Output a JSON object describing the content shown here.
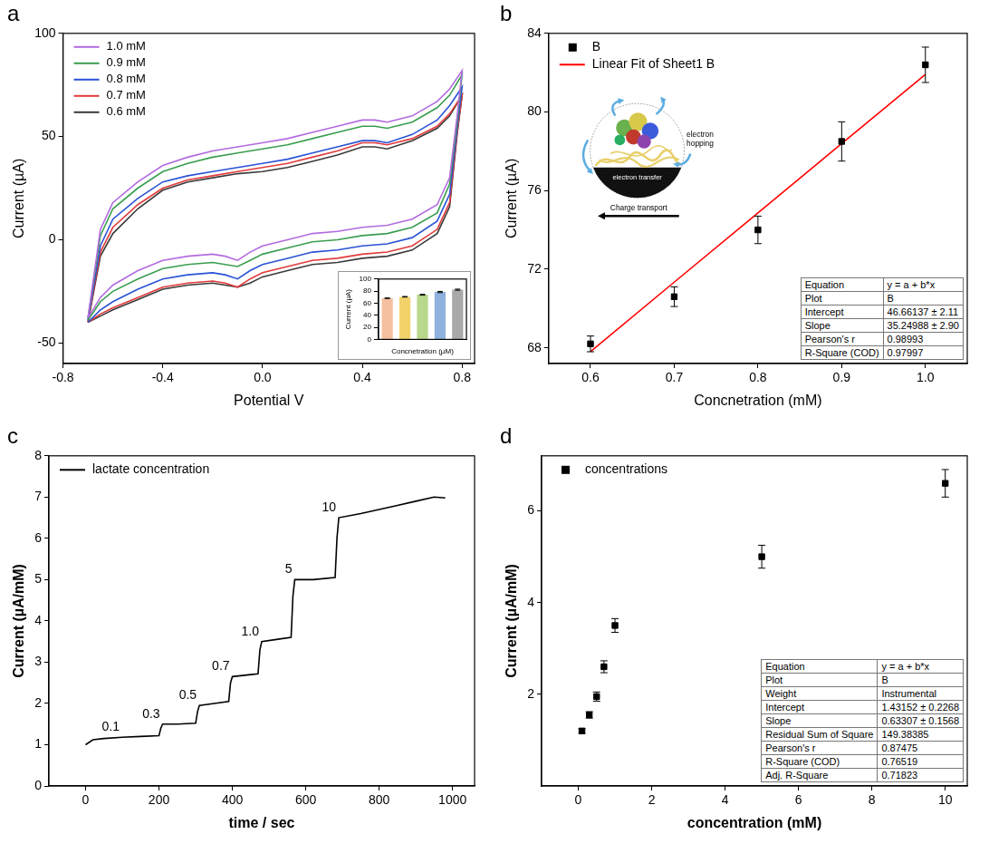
{
  "chart_data": [
    {
      "type": "line",
      "title": "a",
      "x_label": "Potential V",
      "y_label": "Current (µA)",
      "x": [
        -0.7,
        -0.65,
        -0.6,
        -0.5,
        -0.4,
        -0.3,
        -0.2,
        -0.1,
        0,
        0.1,
        0.2,
        0.3,
        0.4,
        0.45,
        0.5,
        0.6,
        0.7,
        0.75,
        0.8,
        0.78,
        0.75,
        0.7,
        0.6,
        0.5,
        0.4,
        0.3,
        0.2,
        0.1,
        0,
        -0.05,
        -0.1,
        -0.15,
        -0.2,
        -0.3,
        -0.4,
        -0.5,
        -0.6,
        -0.65,
        -0.7
      ],
      "series": [
        {
          "name": "1.0 mM",
          "color": "#b26be0",
          "values": [
            -38,
            5,
            18,
            28,
            36,
            40,
            43,
            45,
            47,
            49,
            52,
            55,
            58,
            58,
            57,
            60,
            67,
            73,
            82,
            60,
            30,
            17,
            10,
            7,
            6,
            4,
            3,
            0,
            -3,
            -6,
            -10,
            -8,
            -7,
            -8,
            -10,
            -15,
            -22,
            -28,
            -38
          ]
        },
        {
          "name": "0.9 mM",
          "color": "#3a9e4f",
          "values": [
            -38,
            2,
            15,
            25,
            33,
            37,
            40,
            42,
            44,
            46,
            49,
            52,
            55,
            55,
            54,
            57,
            64,
            70,
            80,
            57,
            27,
            13,
            6,
            3,
            2,
            0,
            -1,
            -4,
            -7,
            -10,
            -13,
            -12,
            -11,
            -12,
            -14,
            -19,
            -25,
            -30,
            -39
          ]
        },
        {
          "name": "0.8 mM",
          "color": "#2a52d6",
          "values": [
            -39,
            -3,
            10,
            20,
            28,
            31,
            33,
            35,
            37,
            39,
            42,
            45,
            48,
            48,
            47,
            51,
            58,
            65,
            74,
            54,
            22,
            9,
            1,
            -2,
            -3,
            -5,
            -6,
            -9,
            -12,
            -15,
            -19,
            -17,
            -16,
            -17,
            -19,
            -24,
            -30,
            -34,
            -40
          ]
        },
        {
          "name": "0.7 mM",
          "color": "#e23b3b",
          "values": [
            -40,
            -6,
            6,
            17,
            25,
            29,
            31,
            33,
            35,
            37,
            40,
            43,
            47,
            47,
            46,
            49,
            55,
            61,
            70,
            52,
            18,
            5,
            -3,
            -6,
            -7,
            -9,
            -10,
            -13,
            -16,
            -19,
            -23,
            -21,
            -20,
            -21,
            -23,
            -28,
            -33,
            -36,
            -40
          ]
        },
        {
          "name": "0.6 mM",
          "color": "#3a3a3a",
          "values": [
            -40,
            -8,
            3,
            15,
            24,
            28,
            30,
            32,
            33,
            35,
            38,
            41,
            45,
            45,
            44,
            48,
            54,
            60,
            70,
            51,
            16,
            3,
            -5,
            -8,
            -9,
            -11,
            -12,
            -15,
            -18,
            -21,
            -23,
            -22,
            -21,
            -22,
            -24,
            -29,
            -34,
            -37,
            -40
          ]
        }
      ],
      "xlim": [
        -0.8,
        0.85
      ],
      "xticks": [
        -0.8,
        -0.4,
        {
          "value": 0,
          "label": "0.0"
        },
        0.4,
        0.8
      ],
      "ylim": [
        -60,
        100
      ],
      "yticks": [
        -50,
        0,
        50,
        100
      ],
      "grid": false,
      "legend": "upper left",
      "inset": {
        "type": "bar",
        "x_label": "Concnetration (µM)",
        "y_label": "Current (µA)",
        "categories": [
          null,
          null,
          null,
          null,
          null
        ],
        "values": [
          68.2,
          70.6,
          74.0,
          78.5,
          82.4
        ],
        "errors": [
          0.4,
          0.5,
          0.7,
          1.0,
          0.9
        ],
        "colors": [
          "#f4c09f",
          "#f2d36b",
          "#b8d98b",
          "#8fb1dd",
          "#a9a9a9"
        ],
        "ylim": [
          0,
          100
        ],
        "yticks": [
          0,
          20,
          40,
          60,
          80,
          100
        ],
        "grid": false,
        "tick_labels": "y"
      }
    },
    {
      "type": "scatter",
      "title": "b",
      "x_label": "Concnetration (mM)",
      "y_label": "Current (µA)",
      "x": [
        0.6,
        0.7,
        0.8,
        0.9,
        1.0
      ],
      "series": [
        {
          "name": "B",
          "color": "#000000",
          "marker": "square",
          "values": [
            68.2,
            70.6,
            74.0,
            78.5,
            82.4
          ],
          "errors": [
            0.4,
            0.5,
            0.7,
            1.0,
            0.9
          ]
        },
        {
          "name": "Linear Fit of Sheet1 B",
          "type": "line",
          "color": "#ff0000",
          "line_style": "solid",
          "values": [
            67.81,
            71.34,
            74.86,
            78.39,
            81.91
          ]
        }
      ],
      "xlim": [
        0.55,
        1.05
      ],
      "xticks": [
        0.6,
        0.7,
        0.8,
        0.9,
        {
          "value": 1,
          "label": "1.0"
        }
      ],
      "ylim": [
        67.2,
        84
      ],
      "yticks": [
        68,
        72,
        76,
        80,
        84
      ],
      "grid": false,
      "legend": "upper left",
      "table": {
        "rows": [
          [
            "Equation",
            "y = a + b*x"
          ],
          [
            "Plot",
            "B"
          ],
          [
            "Intercept",
            "46.66137 ± 2.11"
          ],
          [
            "Slope",
            "35.24988 ± 2.90"
          ],
          [
            "Pearson's r",
            "0.98993"
          ],
          [
            "R-Square (COD)",
            "0.97997"
          ]
        ]
      },
      "diagram": {
        "labels": [
          "electron hopping",
          "electron transfer",
          "Charge transport"
        ]
      }
    },
    {
      "type": "line",
      "title": "c",
      "x_label": "time / sec",
      "y_label": "Current (µA/mM)",
      "x": [
        0,
        20,
        50,
        100,
        150,
        200,
        205,
        210,
        250,
        300,
        305,
        310,
        350,
        390,
        395,
        400,
        450,
        470,
        475,
        480,
        520,
        560,
        565,
        570,
        620,
        680,
        685,
        690,
        750,
        800,
        850,
        900,
        950,
        980
      ],
      "series": [
        {
          "name": "lactate concentration",
          "color": "#000000",
          "values": [
            1.0,
            1.12,
            1.15,
            1.18,
            1.2,
            1.22,
            1.4,
            1.5,
            1.5,
            1.52,
            1.8,
            1.95,
            2.0,
            2.05,
            2.5,
            2.65,
            2.7,
            2.72,
            3.3,
            3.5,
            3.55,
            3.6,
            4.6,
            5.0,
            5.0,
            5.05,
            6.0,
            6.5,
            6.6,
            6.7,
            6.8,
            6.9,
            7.0,
            6.98
          ]
        }
      ],
      "xlim": [
        -100,
        1060
      ],
      "xticks": [
        0,
        200,
        400,
        600,
        800,
        1000
      ],
      "ylim": [
        0,
        8
      ],
      "yticks": [
        0,
        1,
        2,
        3,
        4,
        5,
        6,
        7,
        8
      ],
      "grid": false,
      "legend": "upper left",
      "annotations": [
        {
          "text": "0.1",
          "x": 100,
          "y": 1.18
        },
        {
          "text": "0.3",
          "x": 210,
          "y": 1.5
        },
        {
          "text": "0.5",
          "x": 310,
          "y": 1.95
        },
        {
          "text": "0.7",
          "x": 400,
          "y": 2.65
        },
        {
          "text": "1.0",
          "x": 480,
          "y": 3.5
        },
        {
          "text": "5",
          "x": 570,
          "y": 5.0
        },
        {
          "text": "10",
          "x": 690,
          "y": 6.5
        }
      ]
    },
    {
      "type": "scatter",
      "title": "d",
      "x_label": "concentration (mM)",
      "y_label": "Current (µA/mM)",
      "x": [
        0.1,
        0.3,
        0.5,
        0.7,
        1.0,
        5,
        10
      ],
      "series": [
        {
          "name": "concentrations",
          "color": "#000000",
          "marker": "square",
          "values": [
            1.2,
            1.55,
            1.95,
            2.6,
            3.5,
            5.0,
            6.6
          ],
          "errors": [
            0.05,
            0.07,
            0.1,
            0.13,
            0.15,
            0.25,
            0.3
          ]
        }
      ],
      "xlim": [
        -1,
        10.6
      ],
      "xticks": [
        0,
        2,
        4,
        6,
        8,
        10
      ],
      "ylim": [
        0,
        7.2
      ],
      "yticks": [
        2,
        4,
        6
      ],
      "grid": false,
      "legend": "upper left",
      "table": {
        "rows": [
          [
            "Equation",
            "y = a + b*x"
          ],
          [
            "Plot",
            "B"
          ],
          [
            "Weight",
            "Instrumental"
          ],
          [
            "Intercept",
            "1.43152 ± 0.2268"
          ],
          [
            "Slope",
            "0.63307 ± 0.1568"
          ],
          [
            "Residual Sum of Square",
            "149.38385"
          ],
          [
            "Pearson's r",
            "0.87475"
          ],
          [
            "R-Square (COD)",
            "0.76519"
          ],
          [
            "Adj. R-Square",
            "0.71823"
          ]
        ]
      }
    }
  ]
}
